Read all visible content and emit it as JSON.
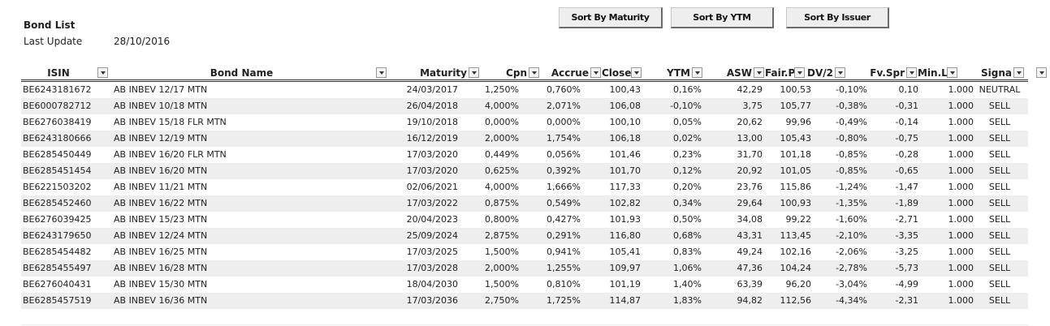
{
  "header": {
    "title": "Bond List",
    "last_update_label": "Last Update",
    "last_update_value": "28/10/2016"
  },
  "buttons": {
    "sort_maturity": "Sort By Maturity",
    "sort_ytm": "Sort By YTM",
    "sort_issuer": "Sort By Issuer"
  },
  "columns": [
    "ISIN",
    "Bond Name",
    "Maturity",
    "Cpn",
    "Accrue",
    "Close",
    "YTM",
    "ASW",
    "Fair.Pr",
    "DV/2",
    "Fv.Spr",
    "Min.Lo",
    "Signa"
  ],
  "rows": [
    [
      "BE6243181672",
      "AB INBEV 12/17 MTN",
      "24/03/2017",
      "1,250%",
      "0,760%",
      "100,43",
      "0,16%",
      "42,29",
      "100,53",
      "-0,10%",
      "0,10",
      "1.000",
      "NEUTRAL"
    ],
    [
      "BE6000782712",
      "AB INBEV 10/18 MTN",
      "26/04/2018",
      "4,000%",
      "2,071%",
      "106,08",
      "-0,10%",
      "3,75",
      "105,77",
      "-0,38%",
      "-0,31",
      "1.000",
      "SELL"
    ],
    [
      "BE6276038419",
      "AB INBEV 15/18 FLR MTN",
      "19/10/2018",
      "0,000%",
      "0,000%",
      "100,10",
      "0,05%",
      "20,62",
      "99,96",
      "-0,49%",
      "-0,14",
      "1.000",
      "SELL"
    ],
    [
      "BE6243180666",
      "AB INBEV 12/19 MTN",
      "16/12/2019",
      "2,000%",
      "1,754%",
      "106,18",
      "0,02%",
      "13,00",
      "105,43",
      "-0,80%",
      "-0,75",
      "1.000",
      "SELL"
    ],
    [
      "BE6285450449",
      "AB INBEV 16/20 FLR MTN",
      "17/03/2020",
      "0,449%",
      "0,056%",
      "101,46",
      "0,23%",
      "31,70",
      "101,18",
      "-0,85%",
      "-0,28",
      "1.000",
      "SELL"
    ],
    [
      "BE6285451454",
      "AB INBEV 16/20 MTN",
      "17/03/2020",
      "0,625%",
      "0,392%",
      "101,70",
      "0,12%",
      "20,92",
      "101,05",
      "-0,85%",
      "-0,65",
      "1.000",
      "SELL"
    ],
    [
      "BE6221503202",
      "AB INBEV 11/21 MTN",
      "02/06/2021",
      "4,000%",
      "1,666%",
      "117,33",
      "0,20%",
      "23,76",
      "115,86",
      "-1,24%",
      "-1,47",
      "1.000",
      "SELL"
    ],
    [
      "BE6285452460",
      "AB INBEV 16/22 MTN",
      "17/03/2022",
      "0,875%",
      "0,549%",
      "102,82",
      "0,34%",
      "29,64",
      "100,93",
      "-1,35%",
      "-1,89",
      "1.000",
      "SELL"
    ],
    [
      "BE6276039425",
      "AB INBEV 15/23 MTN",
      "20/04/2023",
      "0,800%",
      "0,427%",
      "101,93",
      "0,50%",
      "34,08",
      "99,22",
      "-1,60%",
      "-2,71",
      "1.000",
      "SELL"
    ],
    [
      "BE6243179650",
      "AB INBEV 12/24 MTN",
      "25/09/2024",
      "2,875%",
      "0,291%",
      "116,80",
      "0,68%",
      "43,31",
      "113,45",
      "-2,10%",
      "-3,35",
      "1.000",
      "SELL"
    ],
    [
      "BE6285454482",
      "AB INBEV 16/25 MTN",
      "17/03/2025",
      "1,500%",
      "0,941%",
      "105,41",
      "0,83%",
      "49,24",
      "102,16",
      "-2,06%",
      "-3,25",
      "1.000",
      "SELL"
    ],
    [
      "BE6285455497",
      "AB INBEV 16/28 MTN",
      "17/03/2028",
      "2,000%",
      "1,255%",
      "109,97",
      "1,06%",
      "47,36",
      "104,24",
      "-2,78%",
      "-5,73",
      "1.000",
      "SELL"
    ],
    [
      "BE6276040431",
      "AB INBEV 15/30 MTN",
      "18/04/2030",
      "1,500%",
      "0,810%",
      "101,19",
      "1,40%",
      "63,39",
      "96,20",
      "-3,04%",
      "-4,99",
      "1.000",
      "SELL"
    ],
    [
      "BE6285457519",
      "AB INBEV 16/36 MTN",
      "17/03/2036",
      "2,750%",
      "1,725%",
      "114,87",
      "1,83%",
      "94,82",
      "112,56",
      "-4,34%",
      "-2,31",
      "1.000",
      "SELL"
    ]
  ]
}
